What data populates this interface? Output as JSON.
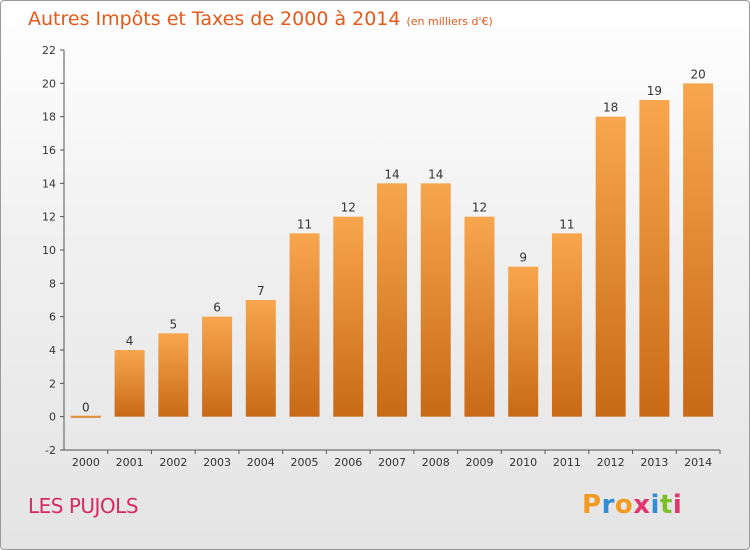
{
  "chart_data": {
    "type": "bar",
    "title": "Autres Impôts et Taxes de 2000 à 2014",
    "subtitle": "(en milliers d'€)",
    "categories": [
      "2000",
      "2001",
      "2002",
      "2003",
      "2004",
      "2005",
      "2006",
      "2007",
      "2008",
      "2009",
      "2010",
      "2011",
      "2012",
      "2013",
      "2014"
    ],
    "values": [
      0,
      4,
      5,
      6,
      7,
      11,
      12,
      14,
      14,
      12,
      9,
      11,
      18,
      19,
      20
    ],
    "ylim": [
      -2,
      22
    ],
    "yticks": [
      -2,
      0,
      2,
      4,
      6,
      8,
      10,
      12,
      14,
      16,
      18,
      20,
      22
    ],
    "grid": false,
    "bar_color": "#f0963c"
  },
  "footer": {
    "location": "LES PUJOLS",
    "brand_letters": [
      "P",
      "r",
      "o",
      "x",
      "i",
      "t",
      "i"
    ],
    "brand_colors": [
      "#f29a21",
      "#2f8ed6",
      "#f29a21",
      "#e5336c",
      "#2f8ed6",
      "#7bbf2a",
      "#e5336c"
    ]
  }
}
